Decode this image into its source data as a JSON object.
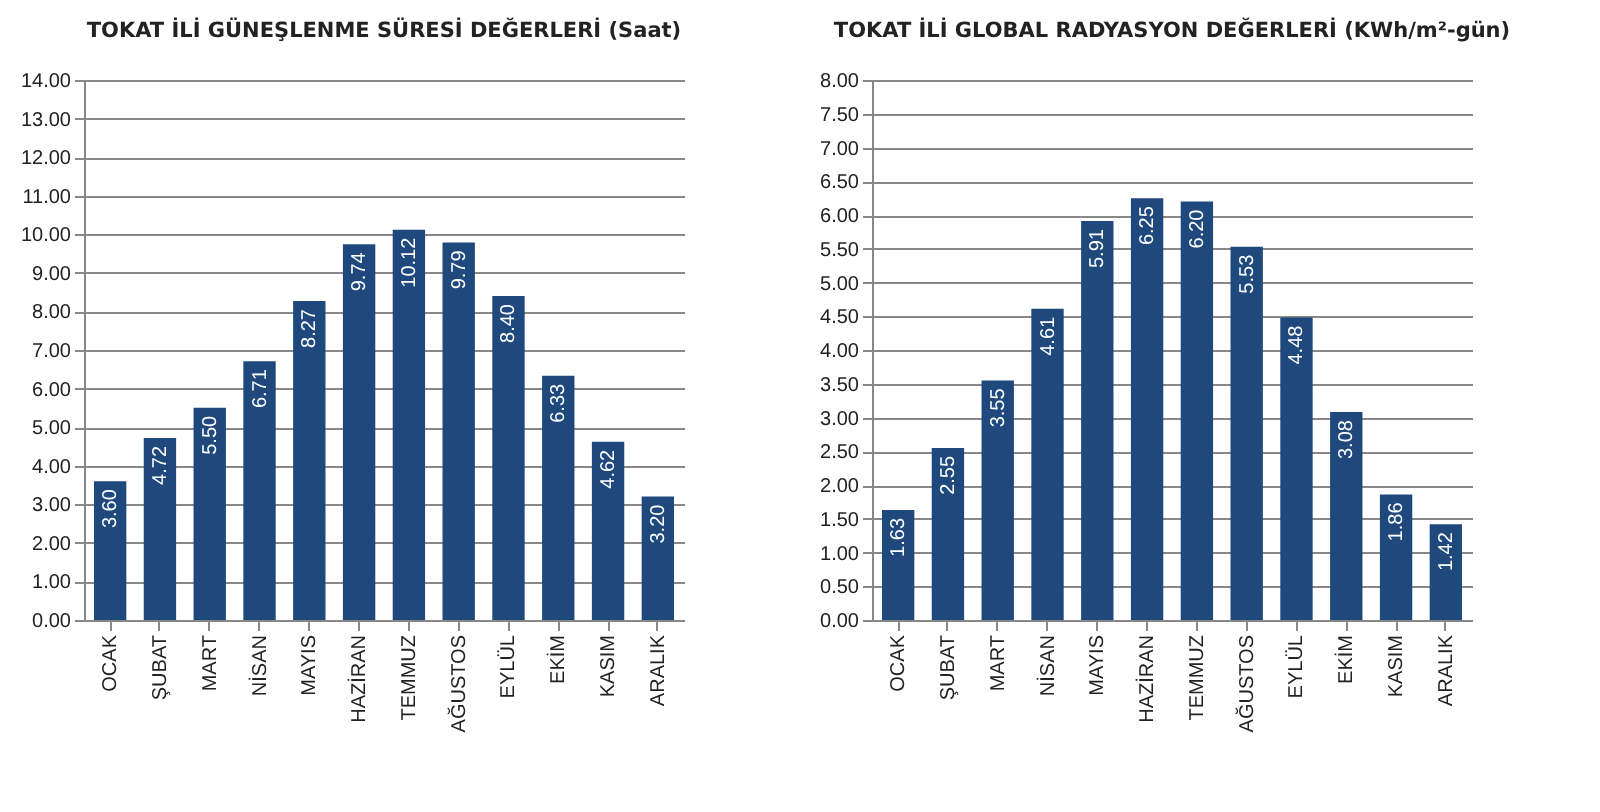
{
  "chart_data": [
    {
      "type": "bar",
      "title": "TOKAT İLİ GÜNEŞLENME SÜRESİ DEĞERLERİ (Saat)",
      "categories": [
        "OCAK",
        "ŞUBAT",
        "MART",
        "NİSAN",
        "MAYIS",
        "HAZİRAN",
        "TEMMUZ",
        "AĞUSTOS",
        "EYLÜL",
        "EKİM",
        "KASIM",
        "ARALIK"
      ],
      "values": [
        3.6,
        4.72,
        5.5,
        6.71,
        8.27,
        9.74,
        10.12,
        9.79,
        8.4,
        6.33,
        4.62,
        3.2
      ],
      "value_labels": [
        "3.60",
        "4.72",
        "5.50",
        "6.71",
        "8.27",
        "9.74",
        "10.12",
        "9.79",
        "8.40",
        "6.33",
        "4.62",
        "3.20"
      ],
      "color": "#1f497d",
      "ylim": [
        0,
        14
      ],
      "yticks": [
        {
          "value": 0,
          "label": "0.00"
        },
        {
          "value": 1,
          "label": "1.00"
        },
        {
          "value": 2,
          "label": "2.00"
        },
        {
          "value": 3,
          "label": "3.00"
        },
        {
          "value": 4,
          "label": "4.00"
        },
        {
          "value": 5,
          "label": "5.00"
        },
        {
          "value": 6,
          "label": "6.00"
        },
        {
          "value": 7,
          "label": "7.00"
        },
        {
          "value": 8,
          "label": "8.00"
        },
        {
          "value": 9,
          "label": "9.00"
        },
        {
          "value": 10,
          "label": "10.00"
        },
        {
          "value": 11,
          "label": "11.00"
        },
        {
          "value": 12,
          "label": "12.00"
        },
        {
          "value": 13,
          "label": "13.00"
        },
        {
          "value": 14,
          "label": "14.00"
        }
      ],
      "grid": "y"
    },
    {
      "type": "bar",
      "title": "TOKAT İLİ GLOBAL RADYASYON DEĞERLERİ (KWh/m²-gün)",
      "categories": [
        "OCAK",
        "ŞUBAT",
        "MART",
        "NİSAN",
        "MAYIS",
        "HAZİRAN",
        "TEMMUZ",
        "AĞUSTOS",
        "EYLÜL",
        "EKİM",
        "KASIM",
        "ARALIK"
      ],
      "values": [
        1.63,
        2.55,
        3.55,
        4.61,
        5.91,
        6.25,
        6.2,
        5.53,
        4.48,
        3.08,
        1.86,
        1.42
      ],
      "value_labels": [
        "1.63",
        "2.55",
        "3.55",
        "4.61",
        "5.91",
        "6.25",
        "6.20",
        "5.53",
        "4.48",
        "3.08",
        "1.86",
        "1.42"
      ],
      "color": "#1f497d",
      "ylim": [
        0,
        8
      ],
      "yticks": [
        {
          "value": 0,
          "label": "0.00"
        },
        {
          "value": 0.5,
          "label": "0.50"
        },
        {
          "value": 1,
          "label": "1.00"
        },
        {
          "value": 1.5,
          "label": "1.50"
        },
        {
          "value": 2,
          "label": "2.00"
        },
        {
          "value": 2.5,
          "label": "2.50"
        },
        {
          "value": 3,
          "label": "3.00"
        },
        {
          "value": 3.5,
          "label": "3.50"
        },
        {
          "value": 4,
          "label": "4.00"
        },
        {
          "value": 4.5,
          "label": "4.50"
        },
        {
          "value": 5,
          "label": "5.00"
        },
        {
          "value": 5.5,
          "label": "5.50"
        },
        {
          "value": 6,
          "label": "6.00"
        },
        {
          "value": 6.5,
          "label": "6.50"
        },
        {
          "value": 7,
          "label": "7.00"
        },
        {
          "value": 7.5,
          "label": "7.50"
        },
        {
          "value": 8,
          "label": "8.00"
        }
      ],
      "grid": "y"
    }
  ]
}
